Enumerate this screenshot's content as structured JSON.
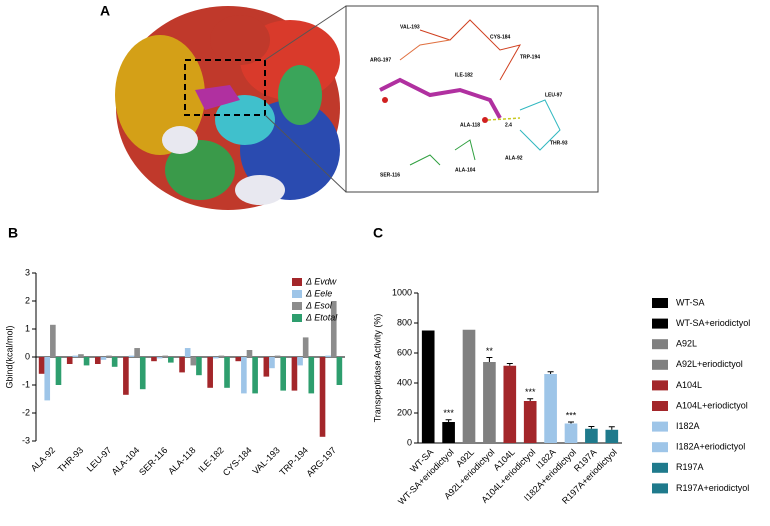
{
  "panel_labels": [
    "A",
    "B",
    "C"
  ],
  "panel_a": {
    "labels": [
      "VAL-193",
      "CYS-184",
      "TRP-194",
      "ARG-197",
      "ILE-182",
      "LEU-97",
      "ALA-118",
      "2.4",
      "THR-93",
      "ALA-92",
      "SER-116",
      "ALA-104"
    ]
  },
  "chart_data": [
    {
      "type": "bar",
      "ylabel": "Gbind(kcal/mol)",
      "categories": [
        "ALA-92",
        "THR-93",
        "LEU-97",
        "ALA-104",
        "SER-116",
        "ALA-118",
        "ILE-182",
        "CYS-184",
        "VAL-193",
        "TRP-194",
        "ARG-197"
      ],
      "series": [
        {
          "name": "Δ Evdw",
          "color": "#a3262a",
          "values": [
            -0.6,
            -0.25,
            -0.25,
            -1.35,
            -0.15,
            -0.55,
            -1.1,
            -0.15,
            -0.7,
            -1.2,
            -2.85
          ]
        },
        {
          "name": "Δ Eele",
          "color": "#9ec5e8",
          "values": [
            -1.55,
            0.05,
            -0.1,
            0.05,
            -0.05,
            0.32,
            -0.05,
            -1.3,
            -0.4,
            -0.3,
            0.05
          ]
        },
        {
          "name": "Δ Esol",
          "color": "#8c8c8c",
          "values": [
            1.15,
            0.1,
            0.05,
            0.32,
            0.05,
            -0.3,
            0.05,
            0.25,
            0.05,
            0.7,
            2.0
          ]
        },
        {
          "name": "Δ Etotal",
          "color": "#2e9e6e",
          "values": [
            -1.0,
            -0.3,
            -0.35,
            -1.15,
            -0.2,
            -0.65,
            -1.1,
            -1.3,
            -1.2,
            -1.3,
            -1.0
          ]
        }
      ],
      "ylim": [
        -3,
        3
      ],
      "yticks": [
        -3,
        -2,
        -1,
        0,
        1,
        2,
        3
      ],
      "legend": "upper right"
    },
    {
      "type": "bar",
      "ylabel": "Transpeptidase Activity (%)",
      "categories": [
        "WT-SA",
        "WT-SA+eriodictyol",
        "A92L",
        "A92L+eriodictyol",
        "A104L",
        "A104L+eriodictyol",
        "I182A",
        "I182A+eriodictyol",
        "R197A",
        "R197A+eriodictyol"
      ],
      "values": [
        750,
        140,
        755,
        540,
        515,
        280,
        460,
        130,
        95,
        88
      ],
      "errors": [
        0,
        15,
        0,
        30,
        15,
        15,
        15,
        10,
        15,
        20
      ],
      "colors": [
        "#000000",
        "#000000",
        "#808080",
        "#808080",
        "#a3262a",
        "#a3262a",
        "#9ec5e8",
        "#9ec5e8",
        "#1f7a8c",
        "#1f7a8c"
      ],
      "annotations": [
        null,
        "***",
        null,
        "**",
        null,
        "***",
        null,
        "***",
        null,
        null
      ],
      "ylim": [
        0,
        1000
      ],
      "yticks": [
        0,
        200,
        400,
        600,
        800,
        1000
      ],
      "legend": "right"
    }
  ]
}
